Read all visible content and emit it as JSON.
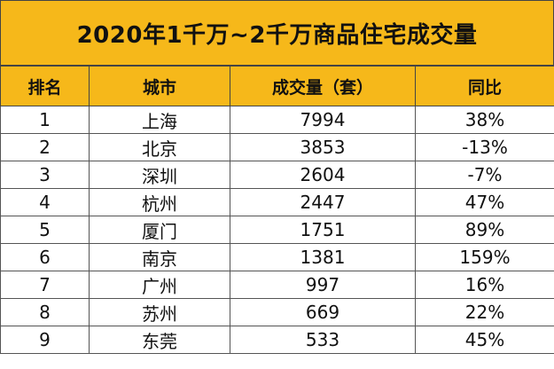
{
  "chart_data": {
    "type": "table",
    "title": "2020年1千万~2千万商品住宅成交量",
    "columns": [
      "排名",
      "城市",
      "成交量（套）",
      "同比"
    ],
    "rows": [
      {
        "rank": "1",
        "city": "上海",
        "volume": "7994",
        "yoy": "38%"
      },
      {
        "rank": "2",
        "city": "北京",
        "volume": "3853",
        "yoy": "-13%"
      },
      {
        "rank": "3",
        "city": "深圳",
        "volume": "2604",
        "yoy": "-7%"
      },
      {
        "rank": "4",
        "city": "杭州",
        "volume": "2447",
        "yoy": "47%"
      },
      {
        "rank": "5",
        "city": "厦门",
        "volume": "1751",
        "yoy": "89%"
      },
      {
        "rank": "6",
        "city": "南京",
        "volume": "1381",
        "yoy": "159%"
      },
      {
        "rank": "7",
        "city": "广州",
        "volume": "997",
        "yoy": "16%"
      },
      {
        "rank": "8",
        "city": "苏州",
        "volume": "669",
        "yoy": "22%"
      },
      {
        "rank": "9",
        "city": "东莞",
        "volume": "533",
        "yoy": "45%"
      }
    ],
    "colors": {
      "header_fill": "#f6b81a",
      "border": "#444444"
    }
  }
}
